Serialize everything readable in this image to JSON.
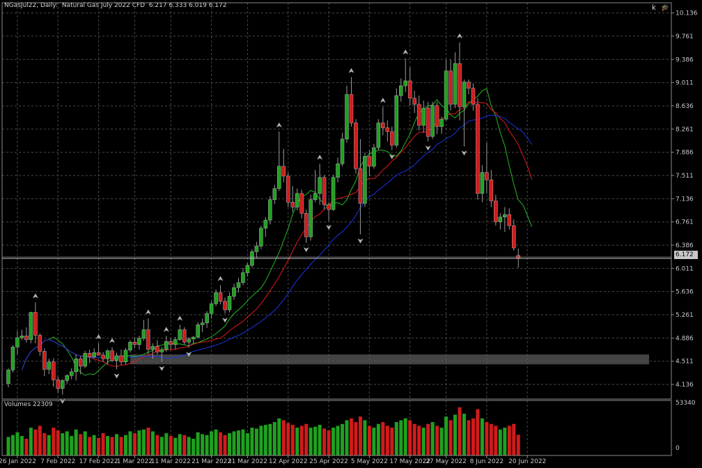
{
  "header": {
    "symbol_text": "NGasJul22, Daily:  Natural Gas July 2022 CFD  6.217 6.333 6.019 6.172"
  },
  "corner": {
    "k_label": "k",
    "hat_icon": "graduation-cap-icon"
  },
  "current_price": {
    "label": "6.172",
    "value": 6.172,
    "tag_color": "#c8c8c8"
  },
  "volume_panel": {
    "label": "Volumes 22309",
    "ticks": [
      "53340",
      "0"
    ],
    "max": 53340
  },
  "colors": {
    "bull": "#1fa11f",
    "bear": "#d11b1b",
    "ma_fast": "#22bb22",
    "ma_mid": "#e01a1a",
    "ma_slow": "#1a35e8",
    "grid": "#4a4a4a",
    "fractal": "#b4b4b4",
    "zone": "#5a5a5a"
  },
  "chart_data": {
    "type": "candlestick",
    "y_ticks": [
      "10.136",
      "9.761",
      "9.386",
      "9.011",
      "8.636",
      "8.261",
      "7.886",
      "7.511",
      "7.136",
      "6.761",
      "6.386",
      "6.011",
      "5.636",
      "5.261",
      "4.886",
      "4.511",
      "4.136"
    ],
    "ylim": [
      3.9,
      10.3
    ],
    "x_ticks": [
      "26 Jan 2022",
      "7 Feb 2022",
      "17 Feb 2022",
      "1 Mar 2022",
      "11 Mar 2022",
      "21 Mar 2022",
      "31 Mar 2022",
      "12 Apr 2022",
      "25 Apr 2022",
      "5 May 2022",
      "17 May 2022",
      "27 May 2022",
      "8 Jun 2022",
      "20 Jun 2022"
    ],
    "tick_bar_index": [
      2,
      11,
      20,
      28,
      36,
      45,
      53,
      62,
      71,
      80,
      89,
      97,
      106,
      115
    ],
    "zone": {
      "low": 4.46,
      "high": 4.62,
      "from_index": 27
    },
    "candles": [
      [
        4.15,
        4.4,
        4.09,
        4.37,
        20000
      ],
      [
        4.37,
        4.77,
        4.33,
        4.74,
        22000
      ],
      [
        4.74,
        5.0,
        4.62,
        4.89,
        25000
      ],
      [
        4.89,
        5.02,
        4.85,
        4.92,
        21000
      ],
      [
        4.92,
        5.06,
        4.81,
        4.86,
        18000
      ],
      [
        4.86,
        5.31,
        4.8,
        5.3,
        30000
      ],
      [
        5.3,
        5.46,
        4.8,
        4.93,
        28000
      ],
      [
        4.93,
        4.96,
        4.6,
        4.67,
        32000
      ],
      [
        4.67,
        4.72,
        4.27,
        4.38,
        24000
      ],
      [
        4.38,
        4.55,
        4.3,
        4.5,
        22000
      ],
      [
        4.5,
        4.56,
        4.1,
        4.21,
        30000
      ],
      [
        4.21,
        4.26,
        4.0,
        4.07,
        27000
      ],
      [
        4.07,
        4.22,
        3.97,
        4.2,
        24000
      ],
      [
        4.2,
        4.3,
        4.15,
        4.28,
        26000
      ],
      [
        4.28,
        4.4,
        4.22,
        4.34,
        21000
      ],
      [
        4.34,
        4.62,
        4.2,
        4.55,
        28000
      ],
      [
        4.55,
        4.6,
        4.3,
        4.43,
        23000
      ],
      [
        4.43,
        4.68,
        4.4,
        4.64,
        26000
      ],
      [
        4.64,
        4.7,
        4.48,
        4.58,
        20000
      ],
      [
        4.58,
        4.72,
        4.56,
        4.65,
        22000
      ],
      [
        4.65,
        4.8,
        4.6,
        4.61,
        19000
      ],
      [
        4.61,
        4.66,
        4.5,
        4.55,
        24000
      ],
      [
        4.55,
        4.7,
        4.46,
        4.68,
        21000
      ],
      [
        4.68,
        4.74,
        4.5,
        4.52,
        20000
      ],
      [
        4.52,
        4.65,
        4.38,
        4.6,
        23000
      ],
      [
        4.6,
        4.7,
        4.45,
        4.5,
        20000
      ],
      [
        4.5,
        4.72,
        4.46,
        4.69,
        22000
      ],
      [
        4.69,
        4.85,
        4.65,
        4.82,
        26000
      ],
      [
        4.82,
        4.9,
        4.72,
        4.78,
        24000
      ],
      [
        4.78,
        4.92,
        4.7,
        4.88,
        27000
      ],
      [
        4.88,
        5.18,
        4.84,
        5.02,
        28000
      ],
      [
        5.02,
        5.2,
        4.62,
        4.7,
        30000
      ],
      [
        4.7,
        4.8,
        4.55,
        4.75,
        26000
      ],
      [
        4.75,
        4.85,
        4.62,
        4.66,
        22000
      ],
      [
        4.66,
        4.74,
        4.5,
        4.7,
        20000
      ],
      [
        4.7,
        4.92,
        4.66,
        4.83,
        24000
      ],
      [
        4.83,
        4.88,
        4.7,
        4.78,
        21000
      ],
      [
        4.78,
        4.9,
        4.7,
        4.86,
        19000
      ],
      [
        4.86,
        5.1,
        4.84,
        5.02,
        23000
      ],
      [
        5.02,
        5.06,
        4.78,
        4.82,
        22000
      ],
      [
        4.82,
        4.9,
        4.73,
        4.87,
        20000
      ],
      [
        4.87,
        4.92,
        4.8,
        4.9,
        18000
      ],
      [
        4.9,
        5.14,
        4.88,
        5.1,
        25000
      ],
      [
        5.1,
        5.2,
        4.98,
        5.13,
        23000
      ],
      [
        5.13,
        5.32,
        5.05,
        5.28,
        22000
      ],
      [
        5.28,
        5.48,
        5.2,
        5.44,
        26000
      ],
      [
        5.44,
        5.67,
        5.4,
        5.62,
        28000
      ],
      [
        5.62,
        5.74,
        5.43,
        5.48,
        25000
      ],
      [
        5.48,
        5.54,
        5.28,
        5.34,
        22000
      ],
      [
        5.34,
        5.62,
        5.3,
        5.56,
        24000
      ],
      [
        5.56,
        5.76,
        5.5,
        5.7,
        26000
      ],
      [
        5.7,
        5.86,
        5.62,
        5.78,
        27000
      ],
      [
        5.78,
        6.02,
        5.74,
        5.94,
        28000
      ],
      [
        5.94,
        6.1,
        5.88,
        6.06,
        24000
      ],
      [
        6.06,
        6.32,
        6.02,
        6.28,
        30000
      ],
      [
        6.28,
        6.44,
        6.18,
        6.37,
        29000
      ],
      [
        6.37,
        6.7,
        6.32,
        6.66,
        32000
      ],
      [
        6.66,
        6.84,
        6.52,
        6.79,
        33000
      ],
      [
        6.79,
        7.18,
        6.72,
        7.12,
        34000
      ],
      [
        7.12,
        7.36,
        7.05,
        7.3,
        36000
      ],
      [
        7.3,
        8.22,
        7.26,
        7.66,
        40000
      ],
      [
        7.66,
        7.94,
        7.4,
        7.5,
        38000
      ],
      [
        7.5,
        7.56,
        7.0,
        7.08,
        35000
      ],
      [
        7.08,
        7.34,
        6.92,
        7.0,
        33000
      ],
      [
        7.0,
        7.3,
        6.95,
        7.22,
        30000
      ],
      [
        7.22,
        7.28,
        6.82,
        6.9,
        32000
      ],
      [
        6.9,
        6.96,
        6.42,
        6.52,
        34000
      ],
      [
        6.52,
        7.2,
        6.46,
        7.12,
        30000
      ],
      [
        7.12,
        7.6,
        7.08,
        7.22,
        31000
      ],
      [
        7.22,
        7.7,
        7.04,
        7.48,
        33000
      ],
      [
        7.48,
        7.52,
        6.96,
        7.04,
        29000
      ],
      [
        7.04,
        7.08,
        6.78,
        6.96,
        27000
      ],
      [
        6.96,
        7.52,
        6.94,
        7.48,
        30000
      ],
      [
        7.48,
        7.8,
        7.4,
        7.7,
        32000
      ],
      [
        7.7,
        8.2,
        7.66,
        8.1,
        34000
      ],
      [
        8.1,
        8.96,
        8.04,
        8.82,
        38000
      ],
      [
        8.82,
        9.1,
        8.3,
        8.36,
        40000
      ],
      [
        8.36,
        8.42,
        7.54,
        7.62,
        36000
      ],
      [
        7.62,
        8.1,
        6.56,
        7.06,
        42000
      ],
      [
        7.06,
        7.88,
        7.0,
        7.82,
        38000
      ],
      [
        7.82,
        7.92,
        7.5,
        7.66,
        32000
      ],
      [
        7.66,
        8.02,
        7.62,
        7.96,
        30000
      ],
      [
        7.96,
        8.42,
        7.92,
        8.36,
        34000
      ],
      [
        8.36,
        8.62,
        8.16,
        8.28,
        36000
      ],
      [
        8.28,
        8.4,
        8.06,
        8.22,
        32000
      ],
      [
        8.22,
        8.3,
        7.92,
        8.0,
        30000
      ],
      [
        8.0,
        8.92,
        7.96,
        8.8,
        36000
      ],
      [
        8.8,
        9.08,
        8.7,
        8.96,
        38000
      ],
      [
        8.96,
        9.4,
        8.86,
        9.04,
        40000
      ],
      [
        9.04,
        9.26,
        8.64,
        8.76,
        38000
      ],
      [
        8.76,
        8.88,
        8.52,
        8.66,
        34000
      ],
      [
        8.66,
        8.8,
        8.24,
        8.32,
        32000
      ],
      [
        8.32,
        8.72,
        8.2,
        8.6,
        30000
      ],
      [
        8.6,
        8.7,
        8.06,
        8.14,
        34000
      ],
      [
        8.14,
        8.7,
        8.1,
        8.64,
        36000
      ],
      [
        8.64,
        8.7,
        8.18,
        8.3,
        32000
      ],
      [
        8.3,
        8.46,
        8.18,
        8.42,
        30000
      ],
      [
        8.42,
        9.38,
        8.4,
        9.2,
        42000
      ],
      [
        9.2,
        9.38,
        8.56,
        8.66,
        38000
      ],
      [
        8.66,
        9.5,
        8.6,
        9.32,
        44000
      ],
      [
        9.32,
        9.66,
        8.4,
        8.62,
        52000
      ],
      [
        8.62,
        9.06,
        7.98,
        9.02,
        45000
      ],
      [
        9.02,
        9.06,
        8.82,
        8.92,
        38000
      ],
      [
        8.92,
        9.0,
        8.56,
        8.66,
        40000
      ],
      [
        8.66,
        8.76,
        7.12,
        7.22,
        50000
      ],
      [
        7.22,
        7.68,
        7.08,
        7.56,
        40000
      ],
      [
        7.56,
        8.04,
        7.22,
        7.44,
        36000
      ],
      [
        7.44,
        7.6,
        7.0,
        7.1,
        34000
      ],
      [
        7.1,
        7.2,
        6.7,
        6.76,
        32000
      ],
      [
        6.76,
        6.9,
        6.64,
        6.84,
        28000
      ],
      [
        6.84,
        7.0,
        6.6,
        6.88,
        30000
      ],
      [
        6.88,
        6.98,
        6.64,
        6.7,
        32000
      ],
      [
        6.7,
        6.8,
        6.3,
        6.34,
        34000
      ],
      [
        6.22,
        6.33,
        6.02,
        6.17,
        22309
      ]
    ]
  }
}
